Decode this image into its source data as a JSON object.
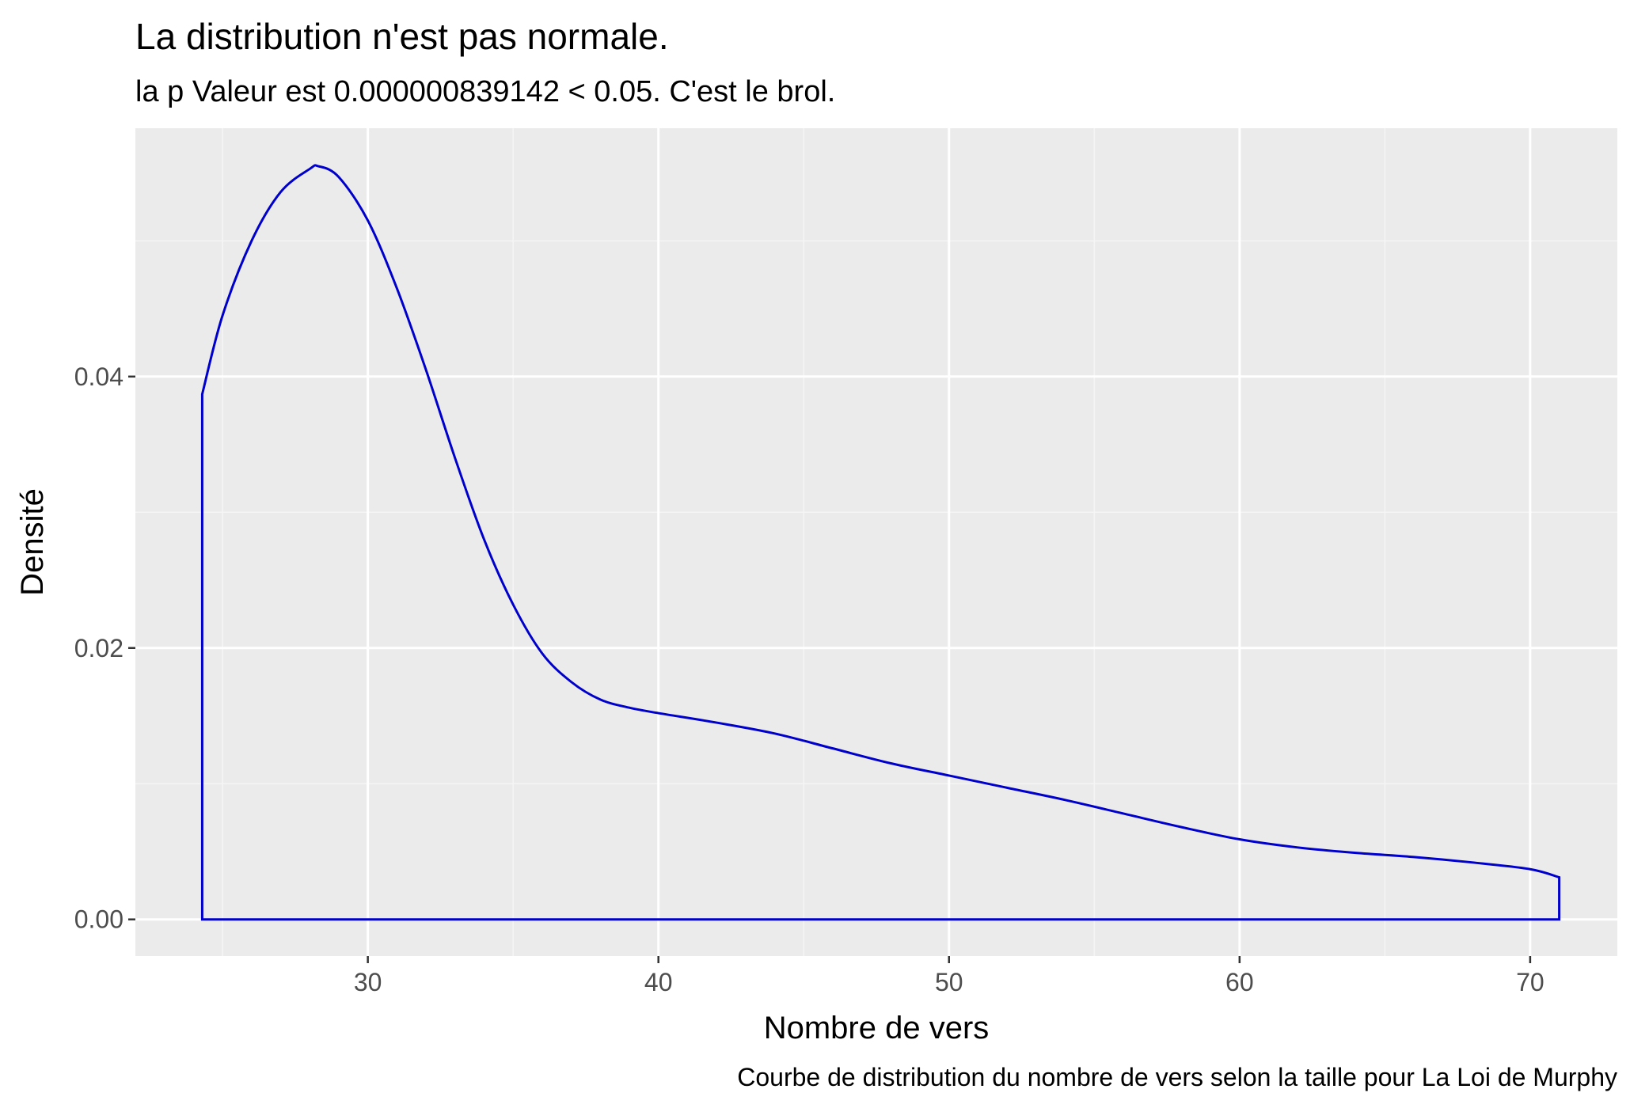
{
  "chart_data": {
    "type": "area",
    "title": "La distribution n'est pas normale.",
    "subtitle": "la p Valeur est  0.000000839142  < 0.05. C'est le brol.",
    "xlabel": "Nombre de vers",
    "ylabel": "Densité",
    "caption": "Courbe de distribution du nombre de vers selon la taille pour  La Loi de Murphy",
    "xlim": [
      22,
      73
    ],
    "ylim": [
      -0.0027,
      0.0583
    ],
    "x_ticks": [
      30,
      40,
      50,
      60,
      70
    ],
    "x_tick_labels": [
      "30",
      "40",
      "50",
      "60",
      "70"
    ],
    "y_ticks": [
      0.0,
      0.02,
      0.04
    ],
    "y_tick_labels": [
      "0.00",
      "0.02",
      "0.04"
    ],
    "grid": true,
    "colors": {
      "panel_background": "#ebebeb",
      "grid_major": "#ffffff",
      "grid_minor": "#f5f5f5",
      "line": "#0000cd",
      "fill": "none"
    },
    "series": [
      {
        "x": [
          24.3,
          25,
          26,
          27,
          28,
          28.3,
          29,
          30,
          31,
          32,
          33,
          34,
          35,
          36,
          37,
          38,
          39,
          40,
          42,
          44,
          46,
          48,
          50,
          52,
          54,
          56,
          58,
          60,
          62,
          64,
          66,
          68,
          70,
          71.0
        ],
        "values": [
          0.0387,
          0.0445,
          0.05,
          0.0536,
          0.0553,
          0.0555,
          0.0547,
          0.0515,
          0.0465,
          0.0405,
          0.034,
          0.028,
          0.0232,
          0.0196,
          0.0175,
          0.0162,
          0.0156,
          0.0152,
          0.0145,
          0.0137,
          0.0126,
          0.0115,
          0.0106,
          0.0097,
          0.0088,
          0.0078,
          0.0068,
          0.0059,
          0.0053,
          0.0049,
          0.0046,
          0.0042,
          0.0037,
          0.0031
        ]
      }
    ]
  }
}
